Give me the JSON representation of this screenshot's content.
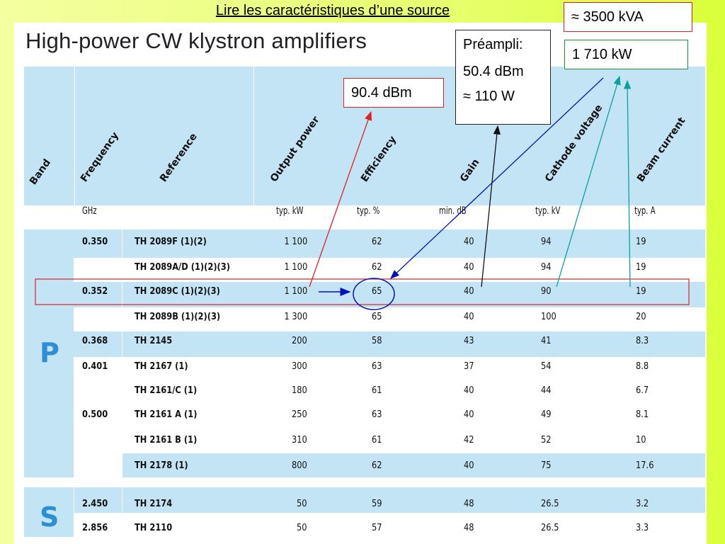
{
  "slide_title": "Lire les caractéristiques d’une source",
  "heading": "High-power CW klystron amplifiers",
  "columns": [
    "Band",
    "Frequency",
    "Reference",
    "Output power",
    "Efficiency",
    "Gain",
    "Cathode voltage",
    "Beam current"
  ],
  "units": [
    "GHz",
    "typ. kW",
    "typ. %",
    "min. dB",
    "typ. kV",
    "typ. A"
  ],
  "rows": [
    {
      "freq": "0.350",
      "ref": "TH 2089F (1)(2)",
      "power": "1 100",
      "eff": "62",
      "gain": "40",
      "volt": "94",
      "curr": "19"
    },
    {
      "freq": "",
      "ref": "TH 2089A/D (1)(2)(3)",
      "power": "1 100",
      "eff": "62",
      "gain": "40",
      "volt": "94",
      "curr": "19"
    },
    {
      "freq": "0.352",
      "ref": "TH 2089C (1)(2)(3)",
      "power": "1 100",
      "eff": "65",
      "gain": "40",
      "volt": "90",
      "curr": "19"
    },
    {
      "freq": "",
      "ref": "TH 2089B (1)(2)(3)",
      "power": "1 300",
      "eff": "65",
      "gain": "40",
      "volt": "100",
      "curr": "20"
    },
    {
      "freq": "0.368",
      "ref": "TH 2145",
      "power": "200",
      "eff": "58",
      "gain": "43",
      "volt": "41",
      "curr": "8.3"
    },
    {
      "freq": "0.401",
      "ref": "TH 2167 (1)",
      "power": "300",
      "eff": "63",
      "gain": "37",
      "volt": "54",
      "curr": "8.8"
    },
    {
      "freq": "",
      "ref": "TH 2161/C (1)",
      "power": "180",
      "eff": "61",
      "gain": "40",
      "volt": "44",
      "curr": "6.7"
    },
    {
      "freq": "0.500",
      "ref": "TH 2161 A (1)",
      "power": "250",
      "eff": "63",
      "gain": "40",
      "volt": "49",
      "curr": "8.1"
    },
    {
      "freq": "",
      "ref": "TH 2161 B (1)",
      "power": "310",
      "eff": "61",
      "gain": "42",
      "volt": "52",
      "curr": "10"
    },
    {
      "freq": "",
      "ref": "TH 2178 (1)",
      "power": "800",
      "eff": "62",
      "gain": "40",
      "volt": "75",
      "curr": "17.6"
    },
    {
      "freq": "2.450",
      "ref": "TH 2174",
      "power": "50",
      "eff": "59",
      "gain": "48",
      "volt": "26.5",
      "curr": "3.2"
    },
    {
      "freq": "2.856",
      "ref": "TH 2110",
      "power": "50",
      "eff": "57",
      "gain": "48",
      "volt": "26.5",
      "curr": "3.3"
    }
  ],
  "bands": [
    "P",
    "S"
  ],
  "annotations": {
    "kva": "≈ 3500 kVA",
    "kw": "1 710 kW",
    "preampli_label": "Préampli:",
    "preampli_dbm": "50.4 dBm",
    "preampli_w": "≈ 110 W",
    "dbm": "90.4 dBm"
  },
  "colors": {
    "table_blue": "#c3e4f5",
    "band_letter": "#2a8fd4",
    "highlight_red": "#e02020",
    "arrow_blue": "#0010c0",
    "arrow_teal": "#0aa0a0",
    "box_green": "#1a9a2a"
  }
}
